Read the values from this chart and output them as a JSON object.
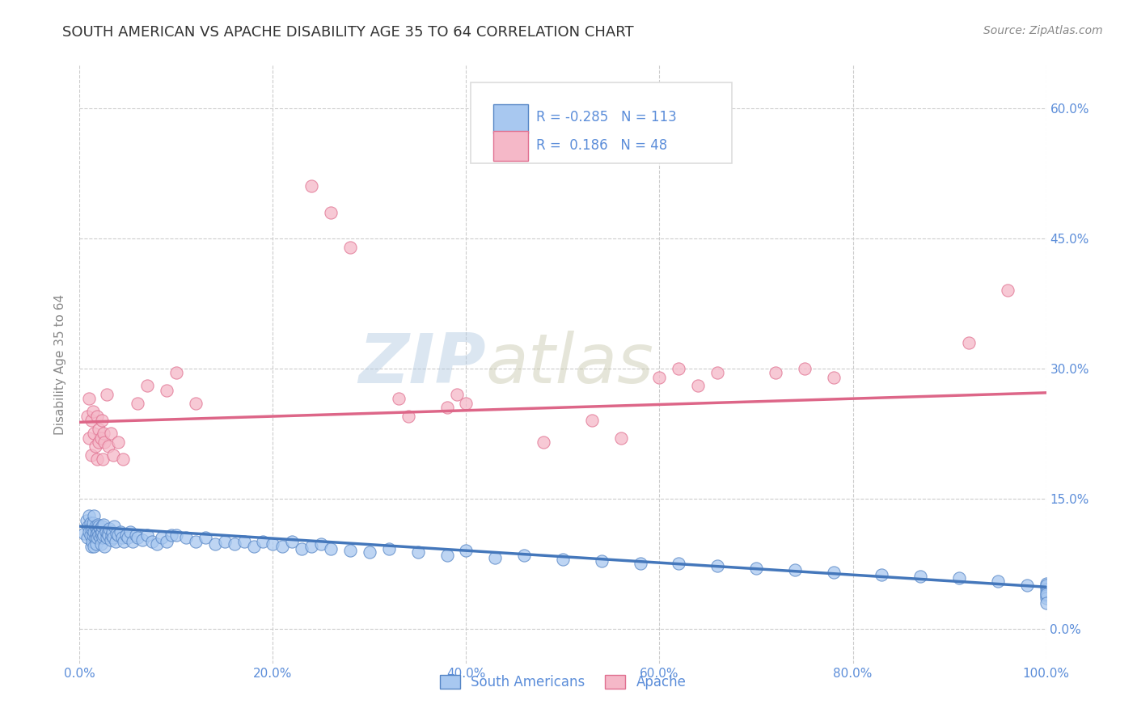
{
  "title": "SOUTH AMERICAN VS APACHE DISABILITY AGE 35 TO 64 CORRELATION CHART",
  "source": "Source: ZipAtlas.com",
  "ylabel": "Disability Age 35 to 64",
  "watermark_zip": "ZIP",
  "watermark_atlas": "atlas",
  "legend_labels": [
    "South Americans",
    "Apache"
  ],
  "r_blue": -0.285,
  "n_blue": 113,
  "r_pink": 0.186,
  "n_pink": 48,
  "xlim": [
    0.0,
    1.0
  ],
  "ylim": [
    -0.04,
    0.65
  ],
  "xticks": [
    0.0,
    0.2,
    0.4,
    0.6,
    0.8,
    1.0
  ],
  "xticklabels": [
    "0.0%",
    "20.0%",
    "40.0%",
    "60.0%",
    "80.0%",
    "100.0%"
  ],
  "yticks": [
    0.0,
    0.15,
    0.3,
    0.45,
    0.6
  ],
  "yticklabels": [
    "0.0%",
    "15.0%",
    "30.0%",
    "45.0%",
    "60.0%"
  ],
  "background_color": "#ffffff",
  "grid_color": "#cccccc",
  "blue_fill": "#a8c8f0",
  "blue_edge": "#5585c5",
  "pink_fill": "#f5b8c8",
  "pink_edge": "#e07090",
  "blue_line_color": "#4477bb",
  "pink_line_color": "#dd6688",
  "tick_color": "#5b8dd9",
  "axis_label_color": "#888888",
  "title_color": "#333333",
  "source_color": "#888888",
  "legend_text_color": "#5b8dd9",
  "title_fontsize": 13,
  "axis_label_fontsize": 11,
  "tick_fontsize": 11,
  "legend_fontsize": 12,
  "source_fontsize": 10,
  "blue_trend_y0": 0.118,
  "blue_trend_y1": 0.048,
  "blue_trend_solid_end": 0.85,
  "pink_trend_y0": 0.238,
  "pink_trend_y1": 0.272,
  "blue_scatter_x": [
    0.005,
    0.007,
    0.008,
    0.009,
    0.01,
    0.01,
    0.011,
    0.011,
    0.012,
    0.012,
    0.013,
    0.013,
    0.014,
    0.014,
    0.015,
    0.015,
    0.015,
    0.016,
    0.016,
    0.017,
    0.017,
    0.018,
    0.018,
    0.019,
    0.019,
    0.02,
    0.02,
    0.021,
    0.021,
    0.022,
    0.022,
    0.023,
    0.023,
    0.024,
    0.025,
    0.025,
    0.026,
    0.027,
    0.028,
    0.029,
    0.03,
    0.031,
    0.032,
    0.033,
    0.034,
    0.035,
    0.036,
    0.037,
    0.038,
    0.04,
    0.042,
    0.044,
    0.046,
    0.048,
    0.05,
    0.052,
    0.055,
    0.058,
    0.06,
    0.065,
    0.07,
    0.075,
    0.08,
    0.085,
    0.09,
    0.095,
    0.1,
    0.11,
    0.12,
    0.13,
    0.14,
    0.15,
    0.16,
    0.17,
    0.18,
    0.19,
    0.2,
    0.21,
    0.22,
    0.23,
    0.24,
    0.25,
    0.26,
    0.28,
    0.3,
    0.32,
    0.35,
    0.38,
    0.4,
    0.43,
    0.46,
    0.5,
    0.54,
    0.58,
    0.62,
    0.66,
    0.7,
    0.74,
    0.78,
    0.83,
    0.87,
    0.91,
    0.95,
    0.98,
    1.0,
    1.0,
    1.0,
    1.0,
    1.0,
    1.0,
    1.0,
    1.0,
    1.0
  ],
  "blue_scatter_y": [
    0.11,
    0.125,
    0.105,
    0.118,
    0.112,
    0.13,
    0.108,
    0.122,
    0.115,
    0.095,
    0.118,
    0.1,
    0.122,
    0.108,
    0.112,
    0.095,
    0.13,
    0.105,
    0.118,
    0.11,
    0.098,
    0.115,
    0.105,
    0.112,
    0.12,
    0.108,
    0.118,
    0.105,
    0.115,
    0.11,
    0.098,
    0.112,
    0.118,
    0.105,
    0.108,
    0.12,
    0.095,
    0.112,
    0.105,
    0.11,
    0.108,
    0.115,
    0.102,
    0.108,
    0.112,
    0.105,
    0.118,
    0.1,
    0.11,
    0.108,
    0.112,
    0.105,
    0.1,
    0.108,
    0.105,
    0.112,
    0.1,
    0.108,
    0.105,
    0.102,
    0.108,
    0.1,
    0.098,
    0.105,
    0.1,
    0.108,
    0.108,
    0.105,
    0.1,
    0.105,
    0.098,
    0.1,
    0.098,
    0.1,
    0.095,
    0.1,
    0.098,
    0.095,
    0.1,
    0.092,
    0.095,
    0.098,
    0.092,
    0.09,
    0.088,
    0.092,
    0.088,
    0.085,
    0.09,
    0.082,
    0.085,
    0.08,
    0.078,
    0.075,
    0.075,
    0.072,
    0.07,
    0.068,
    0.065,
    0.062,
    0.06,
    0.058,
    0.055,
    0.05,
    0.048,
    0.052,
    0.045,
    0.05,
    0.042,
    0.038,
    0.035,
    0.04,
    0.03
  ],
  "pink_scatter_x": [
    0.008,
    0.01,
    0.01,
    0.012,
    0.012,
    0.014,
    0.015,
    0.016,
    0.018,
    0.018,
    0.02,
    0.02,
    0.022,
    0.023,
    0.024,
    0.025,
    0.026,
    0.028,
    0.03,
    0.032,
    0.035,
    0.04,
    0.045,
    0.06,
    0.07,
    0.09,
    0.1,
    0.12,
    0.24,
    0.26,
    0.28,
    0.33,
    0.34,
    0.38,
    0.39,
    0.4,
    0.48,
    0.53,
    0.56,
    0.6,
    0.62,
    0.64,
    0.66,
    0.72,
    0.75,
    0.78,
    0.92,
    0.96
  ],
  "pink_scatter_y": [
    0.245,
    0.22,
    0.265,
    0.24,
    0.2,
    0.25,
    0.225,
    0.21,
    0.245,
    0.195,
    0.215,
    0.23,
    0.22,
    0.24,
    0.195,
    0.225,
    0.215,
    0.27,
    0.21,
    0.225,
    0.2,
    0.215,
    0.195,
    0.26,
    0.28,
    0.275,
    0.295,
    0.26,
    0.51,
    0.48,
    0.44,
    0.265,
    0.245,
    0.255,
    0.27,
    0.26,
    0.215,
    0.24,
    0.22,
    0.29,
    0.3,
    0.28,
    0.295,
    0.295,
    0.3,
    0.29,
    0.33,
    0.39
  ]
}
